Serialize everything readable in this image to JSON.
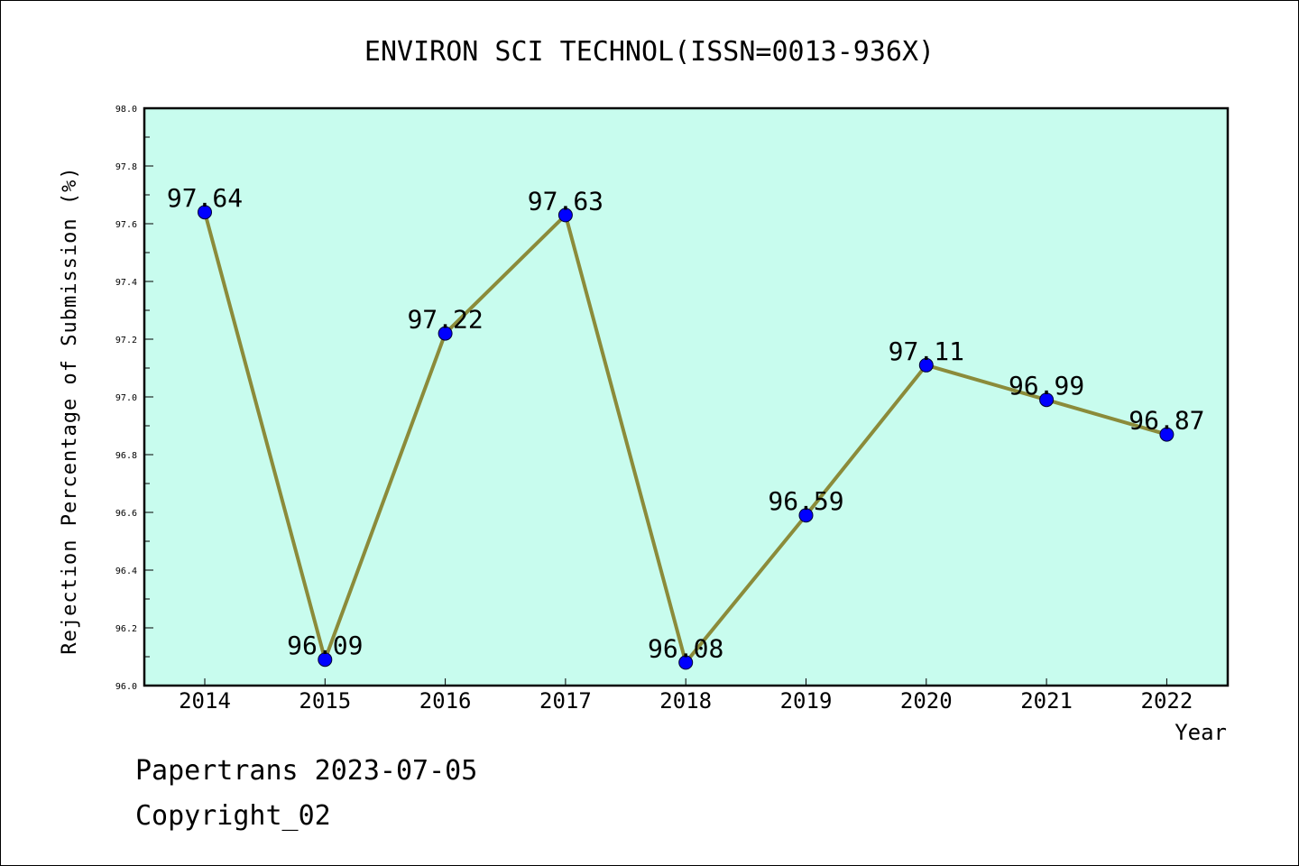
{
  "chart_data": {
    "type": "line",
    "title": "ENVIRON SCI TECHNOL(ISSN=0013-936X)",
    "xlabel": "Year",
    "ylabel": "Rejection Percentage of Submission (%)",
    "categories": [
      "2014",
      "2015",
      "2016",
      "2017",
      "2018",
      "2019",
      "2020",
      "2021",
      "2022"
    ],
    "values": [
      97.64,
      96.09,
      97.22,
      97.63,
      96.08,
      96.59,
      97.11,
      96.99,
      96.87
    ],
    "data_labels": [
      "97.64",
      "96.09",
      "97.22",
      "97.63",
      "96.08",
      "96.59",
      "97.11",
      "96.99",
      "96.87"
    ],
    "ylim": [
      96.0,
      98.0
    ],
    "yticks": [
      "96.0",
      "96.2",
      "96.4",
      "96.6",
      "96.8",
      "97.0",
      "97.2",
      "97.4",
      "97.6",
      "97.8",
      "98.0"
    ],
    "grid": false,
    "legend": "none"
  },
  "colors": {
    "plot_background": "#c8fcee",
    "line": "#8b8b3a",
    "marker": "#0000ff"
  },
  "footer": {
    "line1": "Papertrans 2023-07-05",
    "line2": "Copyright_02"
  }
}
